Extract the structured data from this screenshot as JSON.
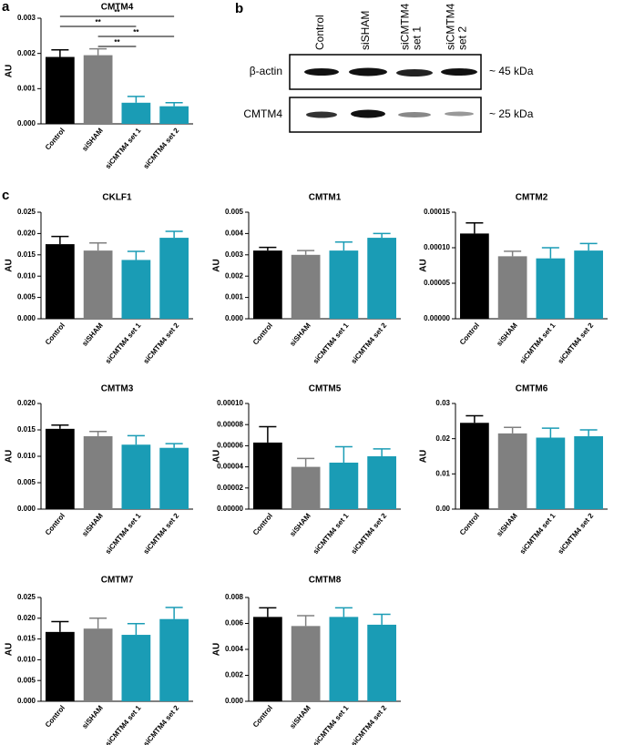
{
  "panels": [
    "a",
    "b",
    "c"
  ],
  "blot": {
    "lanes": [
      [
        "Control"
      ],
      [
        "siSHAM"
      ],
      [
        "siCMTM4",
        "set 1"
      ],
      [
        "siCMTM4",
        "set 2"
      ]
    ],
    "rows": [
      {
        "name": "β-actin",
        "size": "~ 45 kDa"
      },
      {
        "name": "CMTM4",
        "size": "~ 25 kDa"
      }
    ]
  },
  "chart_data": [
    {
      "type": "bar",
      "title": "CMTM4",
      "ylabel": "AU",
      "categories": [
        "Control",
        "siSHAM",
        "siCMTM4 set 1",
        "siCMTM4 set 2"
      ],
      "values": [
        0.0019,
        0.00195,
        0.0006,
        0.0005
      ],
      "errors": [
        0.0002,
        0.00018,
        0.00018,
        0.0001
      ],
      "colors": [
        "#000000",
        "#808080",
        "#1a9cb5",
        "#1a9cb5"
      ],
      "ylim": [
        0,
        0.003
      ],
      "yticks": [
        {
          "value": 0,
          "label": "0.000"
        },
        {
          "value": 0.001,
          "label": "0.001"
        },
        {
          "value": 0.002,
          "label": "0.002"
        },
        {
          "value": 0.003,
          "label": "0.003"
        }
      ],
      "annotations": [
        {
          "from": 0,
          "to": 3,
          "label": "**"
        },
        {
          "from": 0,
          "to": 2,
          "label": "**"
        },
        {
          "from": 1,
          "to": 3,
          "label": "**"
        },
        {
          "from": 1,
          "to": 2,
          "label": "**"
        }
      ]
    },
    {
      "type": "bar",
      "title": "CKLF1",
      "ylabel": "AU",
      "categories": [
        "Control",
        "siSHAM",
        "siCMTM4 set 1",
        "siCMTM4 set 2"
      ],
      "values": [
        0.0175,
        0.016,
        0.0138,
        0.019
      ],
      "errors": [
        0.0018,
        0.0018,
        0.002,
        0.0015
      ],
      "colors": [
        "#000000",
        "#808080",
        "#1a9cb5",
        "#1a9cb5"
      ],
      "ylim": [
        0,
        0.025
      ],
      "yticks": [
        {
          "value": 0,
          "label": "0.000"
        },
        {
          "value": 0.005,
          "label": "0.005"
        },
        {
          "value": 0.01,
          "label": "0.010"
        },
        {
          "value": 0.015,
          "label": "0.015"
        },
        {
          "value": 0.02,
          "label": "0.020"
        },
        {
          "value": 0.025,
          "label": "0.025"
        }
      ]
    },
    {
      "type": "bar",
      "title": "CMTM1",
      "ylabel": "AU",
      "categories": [
        "Control",
        "siSHAM",
        "siCMTM4 set 1",
        "siCMTM4 set 2"
      ],
      "values": [
        0.0032,
        0.003,
        0.0032,
        0.0038
      ],
      "errors": [
        0.00015,
        0.0002,
        0.0004,
        0.0002
      ],
      "colors": [
        "#000000",
        "#808080",
        "#1a9cb5",
        "#1a9cb5"
      ],
      "ylim": [
        0,
        0.005
      ],
      "yticks": [
        {
          "value": 0,
          "label": "0.000"
        },
        {
          "value": 0.001,
          "label": "0.001"
        },
        {
          "value": 0.002,
          "label": "0.002"
        },
        {
          "value": 0.003,
          "label": "0.003"
        },
        {
          "value": 0.004,
          "label": "0.004"
        },
        {
          "value": 0.005,
          "label": "0.005"
        }
      ]
    },
    {
      "type": "bar",
      "title": "CMTM2",
      "ylabel": "AU",
      "categories": [
        "Control",
        "siSHAM",
        "siCMTM4 set 1",
        "siCMTM4 set 2"
      ],
      "values": [
        0.00012,
        8.8e-05,
        8.5e-05,
        9.6e-05
      ],
      "errors": [
        1.5e-05,
        7e-06,
        1.5e-05,
        1e-05
      ],
      "colors": [
        "#000000",
        "#808080",
        "#1a9cb5",
        "#1a9cb5"
      ],
      "ylim": [
        0,
        0.00015
      ],
      "yticks": [
        {
          "value": 0,
          "label": "0.00000"
        },
        {
          "value": 5e-05,
          "label": "0.00005"
        },
        {
          "value": 0.0001,
          "label": "0.00010"
        },
        {
          "value": 0.00015,
          "label": "0.00015"
        }
      ]
    },
    {
      "type": "bar",
      "title": "CMTM3",
      "ylabel": "AU",
      "categories": [
        "Control",
        "siSHAM",
        "siCMTM4 set 1",
        "siCMTM4 set 2"
      ],
      "values": [
        0.0152,
        0.0138,
        0.0122,
        0.0116
      ],
      "errors": [
        0.0007,
        0.0009,
        0.0017,
        0.0008
      ],
      "colors": [
        "#000000",
        "#808080",
        "#1a9cb5",
        "#1a9cb5"
      ],
      "ylim": [
        0,
        0.02
      ],
      "yticks": [
        {
          "value": 0,
          "label": "0.000"
        },
        {
          "value": 0.005,
          "label": "0.005"
        },
        {
          "value": 0.01,
          "label": "0.010"
        },
        {
          "value": 0.015,
          "label": "0.015"
        },
        {
          "value": 0.02,
          "label": "0.020"
        }
      ]
    },
    {
      "type": "bar",
      "title": "CMTM5",
      "ylabel": "AU",
      "categories": [
        "Control",
        "siSHAM",
        "siCMTM4 set 1",
        "siCMTM4 set 2"
      ],
      "values": [
        6.3e-05,
        4e-05,
        4.4e-05,
        5e-05
      ],
      "errors": [
        1.5e-05,
        8e-06,
        1.5e-05,
        7e-06
      ],
      "colors": [
        "#000000",
        "#808080",
        "#1a9cb5",
        "#1a9cb5"
      ],
      "ylim": [
        0,
        0.0001
      ],
      "yticks": [
        {
          "value": 0,
          "label": "0.00000"
        },
        {
          "value": 2e-05,
          "label": "0.00002"
        },
        {
          "value": 4e-05,
          "label": "0.00004"
        },
        {
          "value": 6e-05,
          "label": "0.00006"
        },
        {
          "value": 8e-05,
          "label": "0.00008"
        },
        {
          "value": 0.0001,
          "label": "0.00010"
        }
      ]
    },
    {
      "type": "bar",
      "title": "CMTM6",
      "ylabel": "AU",
      "categories": [
        "Control",
        "siSHAM",
        "siCMTM4 set 1",
        "siCMTM4 set 2"
      ],
      "values": [
        0.0245,
        0.0215,
        0.0203,
        0.0207
      ],
      "errors": [
        0.002,
        0.0017,
        0.0027,
        0.0018
      ],
      "colors": [
        "#000000",
        "#808080",
        "#1a9cb5",
        "#1a9cb5"
      ],
      "ylim": [
        0,
        0.03
      ],
      "yticks": [
        {
          "value": 0,
          "label": "0.00"
        },
        {
          "value": 0.01,
          "label": "0.01"
        },
        {
          "value": 0.02,
          "label": "0.02"
        },
        {
          "value": 0.03,
          "label": "0.03"
        }
      ]
    },
    {
      "type": "bar",
      "title": "CMTM7",
      "ylabel": "AU",
      "categories": [
        "Control",
        "siSHAM",
        "siCMTM4 set 1",
        "siCMTM4 set 2"
      ],
      "values": [
        0.0167,
        0.0175,
        0.016,
        0.0198
      ],
      "errors": [
        0.0025,
        0.0025,
        0.0027,
        0.0028
      ],
      "colors": [
        "#000000",
        "#808080",
        "#1a9cb5",
        "#1a9cb5"
      ],
      "ylim": [
        0,
        0.025
      ],
      "yticks": [
        {
          "value": 0,
          "label": "0.000"
        },
        {
          "value": 0.005,
          "label": "0.005"
        },
        {
          "value": 0.01,
          "label": "0.010"
        },
        {
          "value": 0.015,
          "label": "0.015"
        },
        {
          "value": 0.02,
          "label": "0.020"
        },
        {
          "value": 0.025,
          "label": "0.025"
        }
      ]
    },
    {
      "type": "bar",
      "title": "CMTM8",
      "ylabel": "AU",
      "categories": [
        "Control",
        "siSHAM",
        "siCMTM4 set 1",
        "siCMTM4 set 2"
      ],
      "values": [
        0.0065,
        0.0058,
        0.0065,
        0.0059
      ],
      "errors": [
        0.0007,
        0.0008,
        0.0007,
        0.0008
      ],
      "colors": [
        "#000000",
        "#808080",
        "#1a9cb5",
        "#1a9cb5"
      ],
      "ylim": [
        0,
        0.008
      ],
      "yticks": [
        {
          "value": 0,
          "label": "0.000"
        },
        {
          "value": 0.002,
          "label": "0.002"
        },
        {
          "value": 0.004,
          "label": "0.004"
        },
        {
          "value": 0.006,
          "label": "0.006"
        },
        {
          "value": 0.008,
          "label": "0.008"
        }
      ]
    }
  ]
}
